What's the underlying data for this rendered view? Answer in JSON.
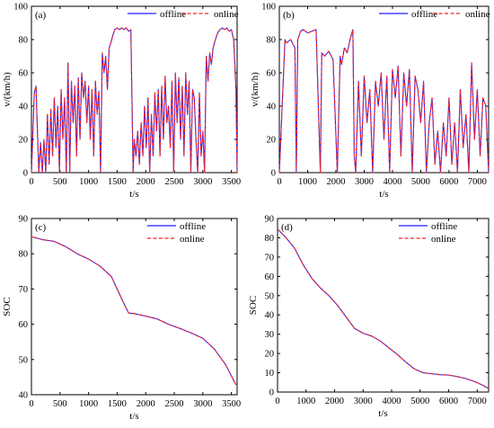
{
  "chart_data": [
    {
      "type": "line",
      "panel_label": "(a)",
      "xlabel": "t/s",
      "ylabel": "v/(km/h)",
      "xlim": [
        0,
        3600
      ],
      "ylim": [
        0,
        100
      ],
      "xticks": [
        0,
        500,
        1000,
        1500,
        2000,
        2500,
        3000,
        3500
      ],
      "yticks": [
        0,
        20,
        40,
        60,
        80,
        100
      ],
      "legend_position": "top-right",
      "series": [
        {
          "name": "offline",
          "color": "#1f1fff",
          "style": "solid"
        },
        {
          "name": "online",
          "color": "#ff2020",
          "style": "dashed"
        }
      ],
      "x": [
        0,
        50,
        80,
        100,
        130,
        160,
        190,
        220,
        250,
        280,
        310,
        340,
        370,
        400,
        430,
        460,
        490,
        520,
        550,
        580,
        610,
        640,
        670,
        700,
        730,
        760,
        790,
        820,
        850,
        880,
        910,
        940,
        970,
        1000,
        1030,
        1060,
        1090,
        1120,
        1150,
        1180,
        1210,
        1240,
        1270,
        1300,
        1330,
        1360,
        1390,
        1420,
        1460,
        1500,
        1540,
        1580,
        1620,
        1660,
        1700,
        1740,
        1780,
        1800,
        1830,
        1860,
        1890,
        1920,
        1950,
        1980,
        2010,
        2040,
        2070,
        2100,
        2130,
        2160,
        2190,
        2220,
        2250,
        2280,
        2310,
        2340,
        2370,
        2400,
        2430,
        2460,
        2490,
        2520,
        2550,
        2580,
        2610,
        2640,
        2670,
        2700,
        2730,
        2760,
        2790,
        2820,
        2850,
        2880,
        2910,
        2940,
        2970,
        3000,
        3030,
        3060,
        3090,
        3120,
        3150,
        3180,
        3220,
        3260,
        3300,
        3340,
        3380,
        3420,
        3460,
        3500,
        3540,
        3580,
        3600
      ],
      "values": [
        0,
        48,
        52,
        30,
        0,
        18,
        0,
        20,
        0,
        35,
        5,
        38,
        10,
        45,
        15,
        40,
        0,
        50,
        20,
        45,
        0,
        66,
        0,
        55,
        30,
        52,
        10,
        57,
        20,
        60,
        45,
        55,
        30,
        52,
        20,
        50,
        10,
        55,
        35,
        49,
        0,
        72,
        60,
        70,
        50,
        75,
        78,
        82,
        86,
        87,
        86,
        87,
        86,
        87,
        85,
        86,
        0,
        20,
        10,
        25,
        5,
        30,
        10,
        40,
        15,
        45,
        0,
        35,
        10,
        48,
        25,
        50,
        10,
        52,
        20,
        58,
        30,
        40,
        15,
        55,
        0,
        60,
        30,
        57,
        20,
        52,
        10,
        60,
        35,
        55,
        0,
        50,
        45,
        20,
        0,
        48,
        10,
        25,
        0,
        70,
        55,
        72,
        65,
        75,
        80,
        84,
        86,
        87,
        86,
        87,
        85,
        86,
        80,
        50,
        0
      ]
    },
    {
      "type": "line",
      "panel_label": "(b)",
      "xlabel": "t/s",
      "ylabel": "v/(km/h)",
      "xlim": [
        0,
        7400
      ],
      "ylim": [
        0,
        100
      ],
      "xticks": [
        0,
        1000,
        2000,
        3000,
        4000,
        5000,
        6000,
        7000
      ],
      "yticks": [
        0,
        20,
        40,
        60,
        80,
        100
      ],
      "legend_position": "top-right",
      "series": [
        {
          "name": "offline",
          "color": "#1f1fff",
          "style": "solid"
        },
        {
          "name": "online",
          "color": "#ff2020",
          "style": "dashed"
        }
      ],
      "x": [
        0,
        100,
        200,
        250,
        400,
        550,
        600,
        650,
        750,
        850,
        1000,
        1150,
        1300,
        1450,
        1500,
        1600,
        1750,
        1900,
        2050,
        2150,
        2200,
        2300,
        2400,
        2500,
        2600,
        2650,
        2700,
        2800,
        2900,
        3000,
        3100,
        3200,
        3300,
        3400,
        3500,
        3600,
        3700,
        3800,
        3900,
        4000,
        4100,
        4200,
        4300,
        4400,
        4500,
        4600,
        4700,
        4800,
        4900,
        5000,
        5100,
        5200,
        5300,
        5400,
        5500,
        5600,
        5700,
        5800,
        5900,
        6000,
        6100,
        6200,
        6300,
        6400,
        6500,
        6600,
        6700,
        6800,
        6900,
        7000,
        7100,
        7200,
        7300,
        7400
      ],
      "values": [
        0,
        40,
        80,
        78,
        80,
        75,
        0,
        80,
        85,
        86,
        84,
        85,
        86,
        0,
        72,
        70,
        73,
        68,
        0,
        70,
        65,
        75,
        72,
        80,
        86,
        10,
        0,
        55,
        10,
        58,
        30,
        50,
        0,
        55,
        40,
        60,
        20,
        58,
        0,
        62,
        45,
        64,
        10,
        60,
        40,
        62,
        0,
        58,
        50,
        30,
        55,
        0,
        30,
        45,
        5,
        25,
        0,
        30,
        10,
        45,
        5,
        30,
        0,
        50,
        15,
        35,
        0,
        66,
        20,
        50,
        10,
        45,
        40,
        0
      ]
    },
    {
      "type": "line",
      "panel_label": "(c)",
      "xlabel": "t/s",
      "ylabel": "SOC",
      "xlim": [
        0,
        3600
      ],
      "ylim": [
        40,
        90
      ],
      "xticks": [
        0,
        500,
        1000,
        1500,
        2000,
        2500,
        3000,
        3500
      ],
      "yticks": [
        40,
        50,
        60,
        70,
        80,
        90
      ],
      "legend_position": "top-right",
      "series": [
        {
          "name": "offline",
          "color": "#1f1fff",
          "style": "solid"
        },
        {
          "name": "online",
          "color": "#ff2020",
          "style": "dashed"
        }
      ],
      "x": [
        0,
        200,
        400,
        600,
        800,
        1000,
        1200,
        1400,
        1500,
        1600,
        1700,
        1800,
        2000,
        2200,
        2400,
        2600,
        2800,
        3000,
        3200,
        3400,
        3580
      ],
      "values": [
        84.8,
        84.0,
        83.5,
        82.0,
        80.0,
        78.5,
        76.5,
        73.5,
        70.0,
        66.5,
        63.2,
        63.0,
        62.3,
        61.5,
        60.0,
        58.8,
        57.5,
        56.0,
        53.0,
        48.5,
        42.8
      ]
    },
    {
      "type": "line",
      "panel_label": "(d)",
      "xlabel": "t/s",
      "ylabel": "SOC",
      "xlim": [
        0,
        7400
      ],
      "ylim": [
        0,
        90
      ],
      "xticks": [
        0,
        1000,
        2000,
        3000,
        4000,
        5000,
        6000,
        7000
      ],
      "yticks": [
        0,
        10,
        20,
        30,
        40,
        50,
        60,
        70,
        80,
        90
      ],
      "legend_position": "top-right",
      "series": [
        {
          "name": "offline",
          "color": "#1f1fff",
          "style": "solid"
        },
        {
          "name": "online",
          "color": "#ff2020",
          "style": "dashed"
        }
      ],
      "x": [
        0,
        300,
        600,
        900,
        1200,
        1500,
        1800,
        2100,
        2400,
        2700,
        3000,
        3300,
        3600,
        3900,
        4200,
        4500,
        4800,
        5100,
        5400,
        5700,
        6000,
        6300,
        6600,
        6900,
        7200,
        7400
      ],
      "values": [
        84.5,
        80.0,
        74.5,
        66.0,
        59.0,
        54.0,
        50.0,
        45.0,
        39.0,
        33.0,
        30.5,
        29.0,
        26.5,
        23.0,
        19.5,
        15.5,
        12.0,
        10.0,
        9.5,
        9.0,
        8.8,
        8.0,
        7.0,
        5.5,
        3.5,
        1.8
      ]
    }
  ]
}
